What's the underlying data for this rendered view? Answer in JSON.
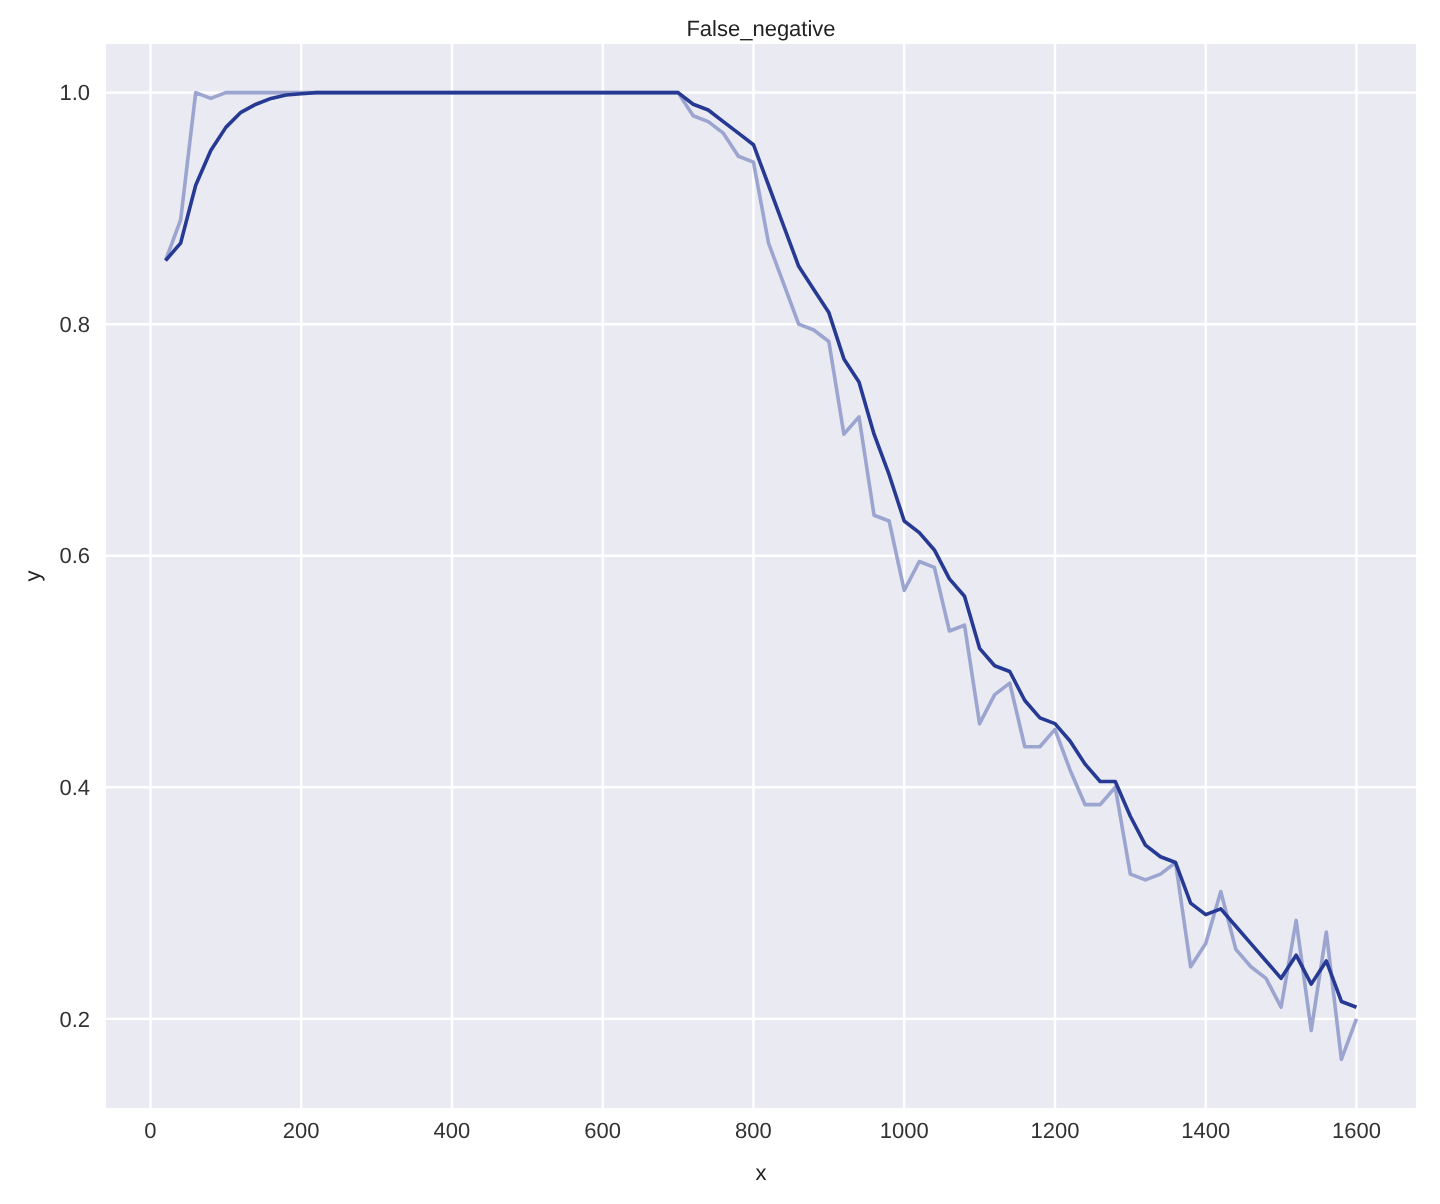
{
  "chart_data": {
    "type": "line",
    "title": "False_negative",
    "xlabel": "x",
    "ylabel": "y",
    "x": [
      20,
      40,
      60,
      80,
      100,
      120,
      140,
      160,
      180,
      200,
      220,
      240,
      260,
      280,
      300,
      320,
      340,
      360,
      380,
      400,
      420,
      440,
      460,
      480,
      500,
      520,
      540,
      560,
      580,
      600,
      620,
      640,
      660,
      680,
      700,
      720,
      740,
      760,
      780,
      800,
      820,
      840,
      860,
      880,
      900,
      920,
      940,
      960,
      980,
      1000,
      1020,
      1040,
      1060,
      1080,
      1100,
      1120,
      1140,
      1160,
      1180,
      1200,
      1220,
      1240,
      1260,
      1280,
      1300,
      1320,
      1340,
      1360,
      1380,
      1400,
      1420,
      1440,
      1460,
      1480,
      1500,
      1520,
      1540,
      1560,
      1580,
      1600
    ],
    "series": [
      {
        "color": "#9ba5cf",
        "values": [
          0.855,
          0.89,
          1.0,
          0.995,
          1.0,
          1.0,
          1.0,
          1.0,
          1.0,
          1.0,
          1.0,
          1.0,
          1.0,
          1.0,
          1.0,
          1.0,
          1.0,
          1.0,
          1.0,
          1.0,
          1.0,
          1.0,
          1.0,
          1.0,
          1.0,
          1.0,
          1.0,
          1.0,
          1.0,
          1.0,
          1.0,
          1.0,
          1.0,
          1.0,
          1.0,
          0.98,
          0.975,
          0.965,
          0.945,
          0.94,
          0.87,
          0.835,
          0.8,
          0.795,
          0.785,
          0.705,
          0.72,
          0.635,
          0.63,
          0.57,
          0.595,
          0.59,
          0.535,
          0.54,
          0.455,
          0.48,
          0.49,
          0.435,
          0.435,
          0.45,
          0.415,
          0.385,
          0.385,
          0.4,
          0.325,
          0.32,
          0.325,
          0.335,
          0.245,
          0.265,
          0.31,
          0.26,
          0.245,
          0.235,
          0.21,
          0.285,
          0.19,
          0.275,
          0.165,
          0.2
        ]
      },
      {
        "color": "#263a94",
        "values": [
          0.855,
          0.87,
          0.92,
          0.95,
          0.97,
          0.983,
          0.99,
          0.995,
          0.998,
          0.999,
          1.0,
          1.0,
          1.0,
          1.0,
          1.0,
          1.0,
          1.0,
          1.0,
          1.0,
          1.0,
          1.0,
          1.0,
          1.0,
          1.0,
          1.0,
          1.0,
          1.0,
          1.0,
          1.0,
          1.0,
          1.0,
          1.0,
          1.0,
          1.0,
          1.0,
          0.99,
          0.985,
          0.975,
          0.965,
          0.955,
          0.92,
          0.885,
          0.85,
          0.83,
          0.81,
          0.77,
          0.75,
          0.705,
          0.67,
          0.63,
          0.62,
          0.605,
          0.58,
          0.565,
          0.52,
          0.505,
          0.5,
          0.475,
          0.46,
          0.455,
          0.44,
          0.42,
          0.405,
          0.405,
          0.375,
          0.35,
          0.34,
          0.335,
          0.3,
          0.29,
          0.295,
          0.28,
          0.265,
          0.25,
          0.235,
          0.255,
          0.23,
          0.25,
          0.215,
          0.21
        ]
      }
    ],
    "xlim": [
      -59,
      1679
    ],
    "xticks": [
      0,
      200,
      400,
      600,
      800,
      1000,
      1200,
      1400,
      1600
    ],
    "ylim": [
      0.123,
      1.042
    ],
    "yticks": [
      {
        "value": 0.2,
        "label": "0.2"
      },
      {
        "value": 0.4,
        "label": "0.4"
      },
      {
        "value": 0.6,
        "label": "0.6"
      },
      {
        "value": 0.8,
        "label": "0.8"
      },
      {
        "value": 1.0,
        "label": "1.0"
      }
    ],
    "grid": true,
    "line_style": "solid",
    "marker": "none"
  }
}
